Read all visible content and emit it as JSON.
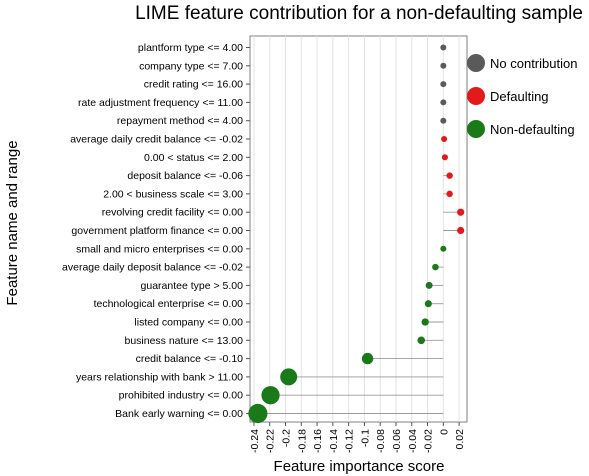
{
  "chart_data": {
    "type": "lollipop",
    "title": "LIME feature contribution for a non-defaulting sample",
    "xlabel": "Feature importance score",
    "ylabel": "Feature name and range",
    "xlim": [
      -0.245,
      0.03
    ],
    "x_ticks": [
      -0.24,
      -0.22,
      -0.2,
      -0.18,
      -0.16,
      -0.14,
      -0.12,
      -0.1,
      -0.08,
      -0.06,
      -0.04,
      -0.02,
      0,
      0.02
    ],
    "x_tick_labels": [
      "-0.24",
      "-0.22",
      "-0.2",
      "-0.18",
      "-0.16",
      "-0.14",
      "-0.12",
      "-0.1",
      "-0.08",
      "-0.06",
      "-0.04",
      "-0.02",
      "0",
      "0.02"
    ],
    "grid": true,
    "legend_position": "right",
    "legend": [
      {
        "label": "No contribution",
        "color": "#5a5a5a"
      },
      {
        "label": "Defaulting",
        "color": "#e31a1c"
      },
      {
        "label": "Non-defaulting",
        "color": "#1a7a1a"
      }
    ],
    "features": [
      {
        "label": "plantform type <= 4.00",
        "value": 0.0,
        "class": "No contribution"
      },
      {
        "label": "company type <= 7.00",
        "value": 0.0,
        "class": "No contribution"
      },
      {
        "label": "credit rating  <= 16.00",
        "value": 0.0,
        "class": "No contribution"
      },
      {
        "label": "rate adjustment frequency <= 11.00",
        "value": 0.0,
        "class": "No contribution"
      },
      {
        "label": "repayment method <= 4.00",
        "value": 0.0,
        "class": "No contribution"
      },
      {
        "label": "average daily credit balance <= -0.02",
        "value": 0.001,
        "class": "Defaulting"
      },
      {
        "label": "0.00 < status <= 2.00",
        "value": 0.002,
        "class": "Defaulting"
      },
      {
        "label": "deposit balance <= -0.06",
        "value": 0.008,
        "class": "Defaulting"
      },
      {
        "label": "2.00 < business scale <= 3.00",
        "value": 0.008,
        "class": "Defaulting"
      },
      {
        "label": "revolving credit facility <= 0.00",
        "value": 0.022,
        "class": "Defaulting"
      },
      {
        "label": "government platform finance <= 0.00",
        "value": 0.022,
        "class": "Defaulting"
      },
      {
        "label": "small and micro enterprises <= 0.00",
        "value": 0.0,
        "class": "Non-defaulting"
      },
      {
        "label": "average daily deposit balance <= -0.02",
        "value": -0.01,
        "class": "Non-defaulting"
      },
      {
        "label": "guarantee type > 5.00",
        "value": -0.018,
        "class": "Non-defaulting"
      },
      {
        "label": "technological enterprise <= 0.00",
        "value": -0.019,
        "class": "Non-defaulting"
      },
      {
        "label": "listed company  <= 0.00",
        "value": -0.023,
        "class": "Non-defaulting"
      },
      {
        "label": "business nature <= 13.00",
        "value": -0.028,
        "class": "Non-defaulting"
      },
      {
        "label": "credit balance  <= -0.10",
        "value": -0.096,
        "class": "Non-defaulting"
      },
      {
        "label": "years relationship with bank > 11.00",
        "value": -0.196,
        "class": "Non-defaulting"
      },
      {
        "label": "prohibited industry <= 0.00",
        "value": -0.219,
        "class": "Non-defaulting"
      },
      {
        "label": "Bank early warning <= 0.00",
        "value": -0.235,
        "class": "Non-defaulting"
      }
    ]
  }
}
